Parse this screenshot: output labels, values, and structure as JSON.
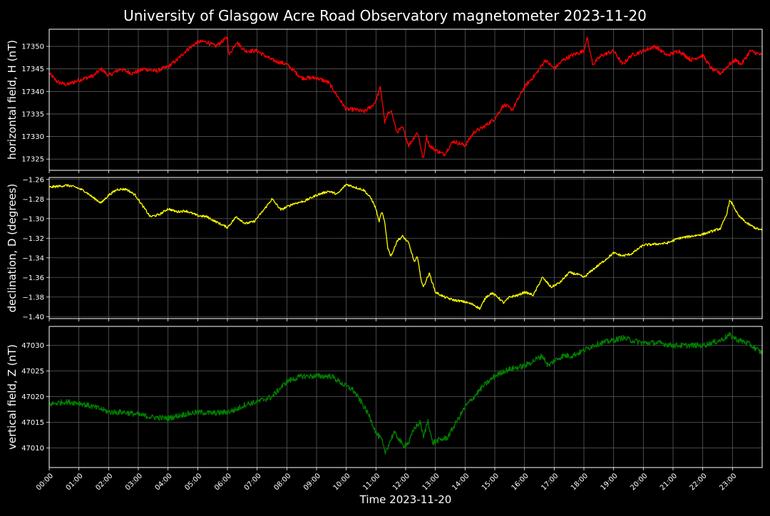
{
  "chart_data": {
    "type": "line",
    "title": "University of Glasgow Acre Road Observatory magnetometer 2023-11-20",
    "xlabel": "Time 2023-11-20",
    "x_ticks": [
      "00:00",
      "01:00",
      "02:00",
      "03:00",
      "04:00",
      "05:00",
      "06:00",
      "07:00",
      "08:00",
      "09:00",
      "10:00",
      "11:00",
      "12:00",
      "13:00",
      "14:00",
      "15:00",
      "16:00",
      "17:00",
      "18:00",
      "19:00",
      "20:00",
      "21:00",
      "22:00",
      "23:00"
    ],
    "xlim_hours": [
      0,
      24
    ],
    "grid": true,
    "colors": {
      "background": "#000000",
      "grid": "#5a5a5a",
      "axes": "#ffffff"
    },
    "panels": [
      {
        "ylabel": "horizontal field, H (nT)",
        "color": "#ff0000",
        "ylim": [
          17322.5,
          17353.8
        ],
        "y_ticks": [
          "17325",
          "17330",
          "17335",
          "17340",
          "17345",
          "17350"
        ],
        "y_tick_values": [
          17325,
          17330,
          17335,
          17340,
          17345,
          17350
        ],
        "noise": 0.45,
        "x": [
          0,
          0.3,
          0.6,
          1,
          1.5,
          1.75,
          2,
          2.4,
          2.8,
          3.2,
          3.6,
          4,
          4.3,
          4.6,
          5,
          5.3,
          5.6,
          6,
          6.05,
          6.3,
          6.6,
          7,
          7.5,
          8,
          8.5,
          9,
          9.4,
          9.7,
          10,
          10.3,
          10.6,
          10.9,
          11,
          11.15,
          11.3,
          11.4,
          11.5,
          11.7,
          11.9,
          12.1,
          12.3,
          12.4,
          12.5,
          12.55,
          12.6,
          12.7,
          12.8,
          13,
          13.3,
          13.6,
          14,
          14.3,
          14.6,
          15,
          15.3,
          15.6,
          16,
          16.4,
          16.7,
          17,
          17.3,
          17.6,
          18,
          18.1,
          18.3,
          18.6,
          19,
          19.3,
          19.6,
          20,
          20.4,
          20.8,
          21.2,
          21.6,
          22,
          22.3,
          22.6,
          22.9,
          23.1,
          23.3,
          23.6,
          24
        ],
        "y": [
          17344,
          17342,
          17341.5,
          17342.5,
          17343.5,
          17345,
          17343.5,
          17345,
          17344,
          17345,
          17344.5,
          17345.5,
          17347,
          17349,
          17351,
          17351,
          17350,
          17352,
          17348,
          17351,
          17349,
          17349,
          17347,
          17346,
          17343,
          17343,
          17342,
          17339,
          17336,
          17336,
          17335.5,
          17337,
          17338,
          17341,
          17333,
          17335,
          17336,
          17331,
          17332,
          17328,
          17330,
          17331,
          17328,
          17326,
          17325,
          17330,
          17328,
          17327,
          17326,
          17329,
          17328,
          17331,
          17332,
          17334,
          17337,
          17336,
          17341,
          17344,
          17347,
          17345,
          17347,
          17348,
          17349,
          17352,
          17346,
          17348,
          17349,
          17346,
          17348,
          17349,
          17350,
          17348,
          17349,
          17347,
          17348,
          17345,
          17344,
          17346,
          17347,
          17346,
          17349,
          17348
        ]
      },
      {
        "ylabel": "declination, D (degrees)",
        "color": "#ffff00",
        "ylim": [
          -1.402,
          -1.258
        ],
        "y_ticks": [
          "−1.26",
          "−1.28",
          "−1.30",
          "−1.32",
          "−1.34",
          "−1.36",
          "−1.38",
          "−1.40"
        ],
        "y_tick_values": [
          -1.26,
          -1.28,
          -1.3,
          -1.32,
          -1.34,
          -1.36,
          -1.38,
          -1.4
        ],
        "noise": 0.0012,
        "x": [
          0,
          0.3,
          0.6,
          0.9,
          1.2,
          1.5,
          1.75,
          2,
          2.3,
          2.6,
          2.9,
          3.1,
          3.4,
          3.7,
          4,
          4.3,
          4.6,
          5,
          5.3,
          5.6,
          6,
          6.3,
          6.6,
          6.9,
          7.2,
          7.5,
          7.8,
          8.2,
          8.6,
          9,
          9.4,
          9.7,
          10,
          10.3,
          10.6,
          10.85,
          11,
          11.1,
          11.2,
          11.3,
          11.4,
          11.5,
          11.6,
          11.7,
          11.9,
          12.1,
          12.3,
          12.4,
          12.5,
          12.6,
          12.7,
          12.8,
          13,
          13.3,
          13.6,
          14,
          14.3,
          14.5,
          14.7,
          14.9,
          15.1,
          15.3,
          15.5,
          15.8,
          16,
          16.3,
          16.6,
          16.9,
          17.2,
          17.5,
          17.8,
          18,
          18.3,
          18.6,
          19,
          19.3,
          19.6,
          20,
          20.4,
          20.8,
          21.2,
          21.6,
          22,
          22.3,
          22.6,
          22.8,
          22.9,
          23,
          23.2,
          23.5,
          23.8,
          24
        ],
        "y": [
          -1.268,
          -1.267,
          -1.266,
          -1.268,
          -1.272,
          -1.279,
          -1.284,
          -1.276,
          -1.27,
          -1.27,
          -1.276,
          -1.285,
          -1.298,
          -1.296,
          -1.29,
          -1.293,
          -1.292,
          -1.297,
          -1.298,
          -1.303,
          -1.309,
          -1.298,
          -1.305,
          -1.303,
          -1.292,
          -1.28,
          -1.291,
          -1.285,
          -1.282,
          -1.276,
          -1.272,
          -1.275,
          -1.265,
          -1.268,
          -1.271,
          -1.28,
          -1.29,
          -1.303,
          -1.293,
          -1.305,
          -1.33,
          -1.338,
          -1.332,
          -1.323,
          -1.318,
          -1.325,
          -1.345,
          -1.338,
          -1.36,
          -1.37,
          -1.362,
          -1.356,
          -1.375,
          -1.38,
          -1.383,
          -1.385,
          -1.388,
          -1.392,
          -1.38,
          -1.376,
          -1.38,
          -1.386,
          -1.38,
          -1.378,
          -1.375,
          -1.378,
          -1.36,
          -1.37,
          -1.365,
          -1.355,
          -1.357,
          -1.36,
          -1.352,
          -1.345,
          -1.335,
          -1.338,
          -1.336,
          -1.327,
          -1.326,
          -1.325,
          -1.32,
          -1.318,
          -1.316,
          -1.313,
          -1.31,
          -1.296,
          -1.282,
          -1.285,
          -1.297,
          -1.305,
          -1.31,
          -1.312
        ]
      },
      {
        "ylabel": "vertical field, Z (nT)",
        "color": "#008000",
        "ylim": [
          47006.2,
          47033.7
        ],
        "y_ticks": [
          "47010",
          "47015",
          "47020",
          "47025",
          "47030"
        ],
        "y_tick_values": [
          47010,
          47015,
          47020,
          47025,
          47030
        ],
        "noise": 0.55,
        "x": [
          0,
          0.5,
          1,
          1.5,
          1.8,
          2,
          2.5,
          3,
          3.5,
          4,
          4.5,
          5,
          5.5,
          6,
          6.3,
          6.6,
          7,
          7.5,
          8,
          8.5,
          9,
          9.5,
          10,
          10.2,
          10.5,
          10.8,
          11,
          11.2,
          11.3,
          11.45,
          11.6,
          11.75,
          11.9,
          12.1,
          12.3,
          12.5,
          12.6,
          12.75,
          12.9,
          13.1,
          13.4,
          13.7,
          14,
          14.3,
          14.6,
          15,
          15.3,
          15.6,
          16,
          16.3,
          16.6,
          16.8,
          17,
          17.3,
          17.6,
          18,
          18.3,
          18.6,
          19,
          19.3,
          19.6,
          20,
          20.5,
          21,
          21.5,
          22,
          22.3,
          22.6,
          22.9,
          23.2,
          23.5,
          24
        ],
        "y": [
          47018.5,
          47019,
          47018.8,
          47018,
          47017.5,
          47017,
          47017,
          47016.5,
          47016,
          47015.8,
          47016.5,
          47017,
          47016.8,
          47017,
          47017.5,
          47018.5,
          47019,
          47020,
          47023,
          47024,
          47024,
          47024,
          47022,
          47021.5,
          47019,
          47016,
          47013,
          47011.5,
          47009,
          47011,
          47013,
          47012,
          47010.5,
          47011,
          47014,
          47015,
          47012,
          47015.5,
          47011,
          47011.5,
          47012,
          47015,
          47018,
          47020,
          47022,
          47024,
          47025,
          47025.5,
          47026,
          47027,
          47028,
          47026,
          47027,
          47028,
          47028,
          47029,
          47030,
          47030.5,
          47031,
          47031.5,
          47031,
          47030.5,
          47030.5,
          47030,
          47030,
          47030,
          47030.5,
          47031,
          47032,
          47031,
          47030.5,
          47028.5
        ]
      }
    ]
  }
}
